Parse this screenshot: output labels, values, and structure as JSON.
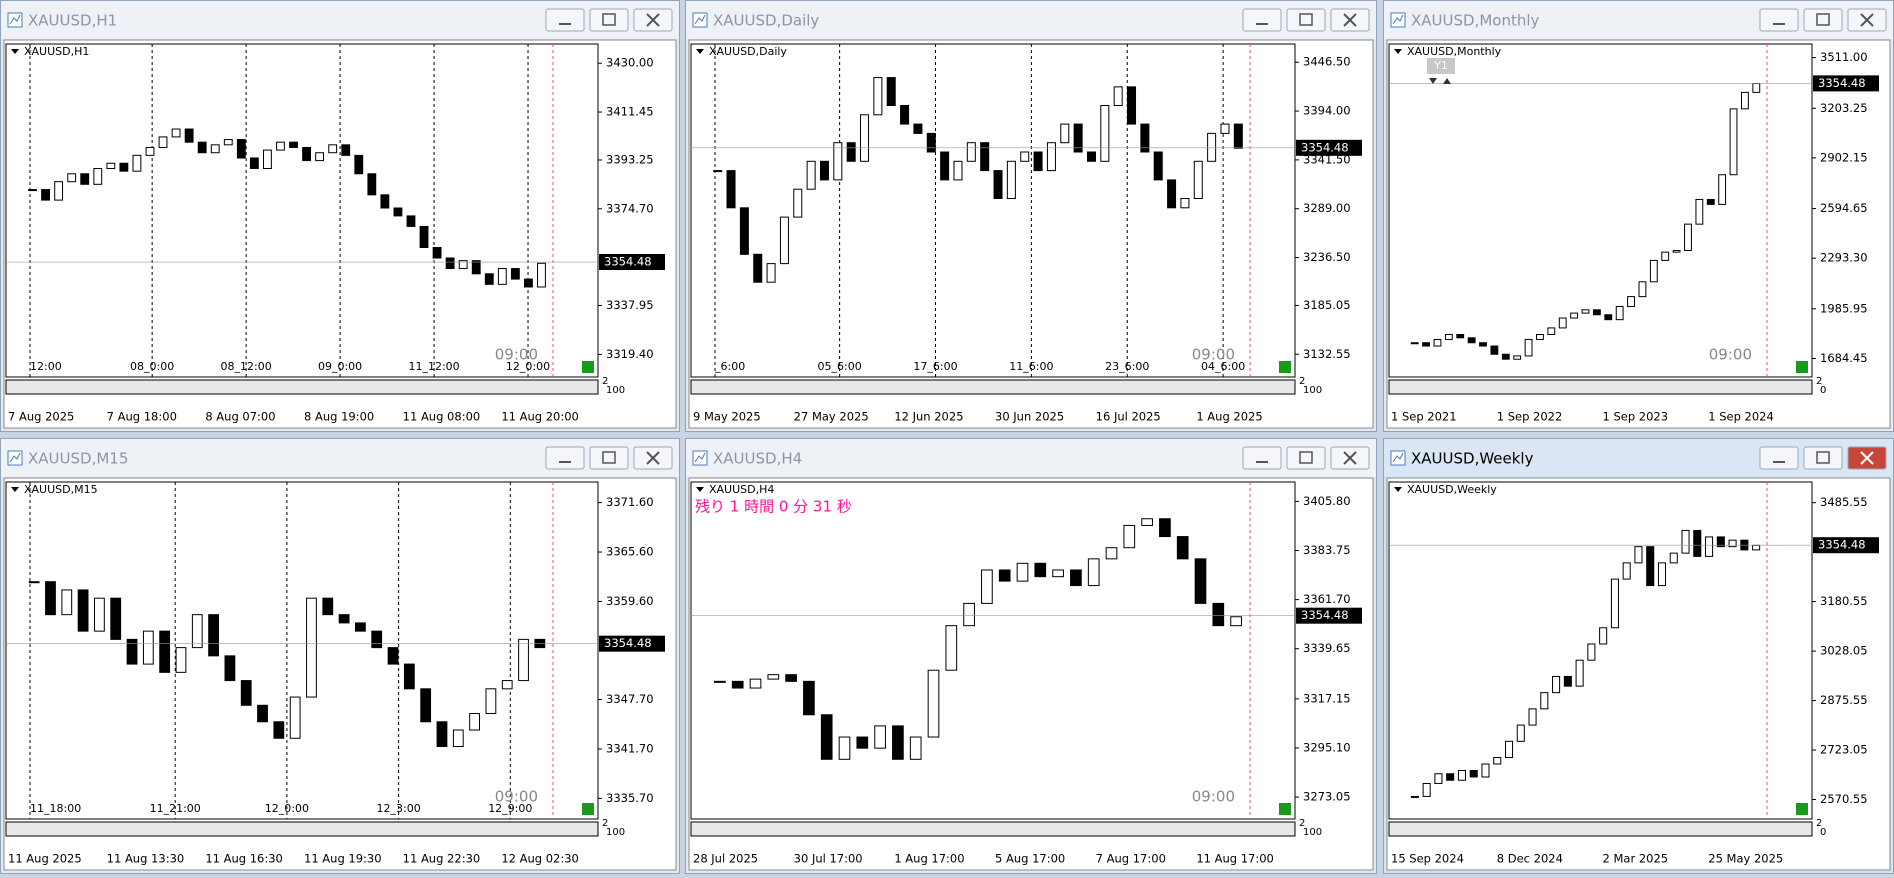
{
  "windows": [
    {
      "title": "XAUUSD,H1",
      "symbol_label": "XAUUSD,H1",
      "active": false,
      "ylim": [
        3310.8,
        3437.3
      ],
      "yticks": [
        {
          "value": 3430,
          "label": "3430.00"
        },
        3411.45,
        3393.25,
        {
          "value": 3374.7,
          "label": "3374.70"
        },
        3337.95,
        {
          "value": 3319.4,
          "label": "3319.40"
        }
      ],
      "current": 3354.48,
      "period_labels": [
        "12:00",
        "08_0:00",
        "08_12:00",
        "09_0:00",
        "11_12:00",
        "12_0:00"
      ],
      "date_labels": [
        "7 Aug 2025",
        "7 Aug 18:00",
        "8 Aug 07:00",
        "8 Aug 19:00",
        "11 Aug 08:00",
        "11 Aug 20:00"
      ],
      "time_marker": "09:00",
      "indicator_labels": [
        "2",
        "100"
      ],
      "closes": [
        3382,
        3378,
        3385,
        3388,
        3384,
        3390,
        3392,
        3389,
        3395,
        3398,
        3402,
        3405,
        3400,
        3396,
        3399,
        3401,
        3394,
        3390,
        3397,
        3400,
        3398,
        3393,
        3396,
        3399,
        3395,
        3388,
        3380,
        3375,
        3372,
        3368,
        3360,
        3356,
        3352,
        3355,
        3350,
        3346,
        3352,
        3348,
        3345,
        3354
      ]
    },
    {
      "title": "XAUUSD,Daily",
      "symbol_label": "XAUUSD,Daily",
      "active": false,
      "ylim": [
        3108.1,
        3466.1
      ],
      "yticks": [
        {
          "value": 3446.5,
          "label": "3446.50"
        },
        {
          "value": 3394,
          "label": "3394.00"
        },
        {
          "value": 3341.5,
          "label": "3341.50"
        },
        {
          "value": 3289,
          "label": "3289.00"
        },
        {
          "value": 3236.5,
          "label": "3236.50"
        },
        3185.05,
        3132.55
      ],
      "current": 3354.48,
      "period_labels": [
        "_6:00",
        "05_6:00",
        "17_6:00",
        "11_6:00",
        "23_6:00",
        "04_6:00"
      ],
      "date_labels": [
        "9 May 2025",
        "27 May 2025",
        "12 Jun 2025",
        "30 Jun 2025",
        "16 Jul 2025",
        "1 Aug 2025"
      ],
      "time_marker": "09:00",
      "indicator_labels": [
        "2",
        "100"
      ],
      "closes": [
        3330,
        3290,
        3240,
        3210,
        3230,
        3280,
        3310,
        3340,
        3320,
        3360,
        3340,
        3390,
        3430,
        3400,
        3380,
        3370,
        3350,
        3320,
        3340,
        3360,
        3330,
        3300,
        3340,
        3350,
        3330,
        3360,
        3380,
        3350,
        3340,
        3400,
        3420,
        3380,
        3350,
        3320,
        3290,
        3300,
        3340,
        3370,
        3380,
        3354
      ]
    },
    {
      "title": "XAUUSD,Monthly",
      "symbol_label": "XAUUSD,Monthly",
      "active": false,
      "badge": "Y1",
      "ylim": [
        1572,
        3593.7
      ],
      "yticks": [
        {
          "value": 3511,
          "label": "3511.00"
        },
        3203.25,
        2902.15,
        2594.65,
        {
          "value": 2293.3,
          "label": "2293.30"
        },
        1985.95,
        1684.45
      ],
      "current": 3354.48,
      "period_labels": [],
      "date_labels": [
        "1 Sep 2021",
        "1 Sep 2022",
        "1 Sep 2023",
        "1 Sep 2024"
      ],
      "time_marker": "09:00",
      "indicator_labels": [
        "2",
        "0"
      ],
      "closes": [
        1780,
        1760,
        1800,
        1830,
        1810,
        1780,
        1760,
        1710,
        1680,
        1700,
        1800,
        1830,
        1870,
        1930,
        1960,
        1980,
        1950,
        1920,
        2000,
        2060,
        2150,
        2280,
        2330,
        2340,
        2500,
        2650,
        2620,
        2800,
        3200,
        3300,
        3354
      ]
    },
    {
      "title": "XAUUSD,M15",
      "symbol_label": "XAUUSD,M15",
      "active": false,
      "ylim": [
        3333.2,
        3374.1
      ],
      "yticks": [
        {
          "value": 3371.6,
          "label": "3371.60"
        },
        {
          "value": 3365.6,
          "label": "3365.60"
        },
        {
          "value": 3359.6,
          "label": "3359.60"
        },
        {
          "value": 3347.7,
          "label": "3347.70"
        },
        {
          "value": 3341.7,
          "label": "3341.70"
        },
        {
          "value": 3335.7,
          "label": "3335.70"
        }
      ],
      "current": 3354.48,
      "period_labels": [
        "11_18:00",
        "11_21:00",
        "12_0:00",
        "12_3:00",
        "12_9:00"
      ],
      "date_labels": [
        "11 Aug 2025",
        "11 Aug 13:30",
        "11 Aug 16:30",
        "11 Aug 19:30",
        "11 Aug 22:30",
        "12 Aug 02:30"
      ],
      "time_marker": "09:00",
      "indicator_labels": [
        "2",
        "100"
      ],
      "closes": [
        3362,
        3358,
        3361,
        3356,
        3360,
        3355,
        3352,
        3356,
        3351,
        3354,
        3358,
        3353,
        3350,
        3347,
        3345,
        3343,
        3348,
        3360,
        3358,
        3357,
        3356,
        3354,
        3352,
        3349,
        3345,
        3342,
        3344,
        3346,
        3349,
        3350,
        3355,
        3354
      ]
    },
    {
      "title": "XAUUSD,H4",
      "symbol_label": "XAUUSD,H4",
      "active": false,
      "countdown": "残り 1 時間 0 分 31 秒",
      "ylim": [
        3263.2,
        3414.5
      ],
      "yticks": [
        {
          "value": 3405.8,
          "label": "3405.80"
        },
        3383.75,
        {
          "value": 3361.7,
          "label": "3361.70"
        },
        3339.65,
        3317.15,
        {
          "value": 3295.1,
          "label": "3295.10"
        },
        3273.05
      ],
      "current": 3354.48,
      "period_labels": [],
      "date_labels": [
        "28 Jul 2025",
        "30 Jul 17:00",
        "1 Aug 17:00",
        "5 Aug 17:00",
        "7 Aug 17:00",
        "11 Aug 17:00"
      ],
      "time_marker": "09:00",
      "indicator_labels": [
        "2",
        "100"
      ],
      "closes": [
        3325,
        3322,
        3326,
        3328,
        3325,
        3310,
        3290,
        3300,
        3295,
        3305,
        3290,
        3300,
        3330,
        3350,
        3360,
        3375,
        3370,
        3378,
        3372,
        3375,
        3368,
        3380,
        3385,
        3395,
        3398,
        3390,
        3380,
        3360,
        3350,
        3354
      ]
    },
    {
      "title": "XAUUSD,Weekly",
      "symbol_label": "XAUUSD,Weekly",
      "active": true,
      "ylim": [
        2510.5,
        3549.3
      ],
      "yticks": [
        3485.55,
        3180.55,
        3028.05,
        2875.55,
        2723.05,
        2570.55
      ],
      "current": 3354.48,
      "period_labels": [],
      "date_labels": [
        "15 Sep 2024",
        "8 Dec 2024",
        "2 Mar 2025",
        "25 May 2025"
      ],
      "time_marker": "",
      "indicator_labels": [
        "2",
        "0"
      ],
      "closes": [
        2580,
        2620,
        2650,
        2630,
        2660,
        2640,
        2680,
        2700,
        2750,
        2800,
        2850,
        2900,
        2950,
        2920,
        3000,
        3050,
        3100,
        3250,
        3300,
        3350,
        3230,
        3300,
        3330,
        3400,
        3320,
        3380,
        3350,
        3370,
        3340,
        3354
      ]
    }
  ]
}
